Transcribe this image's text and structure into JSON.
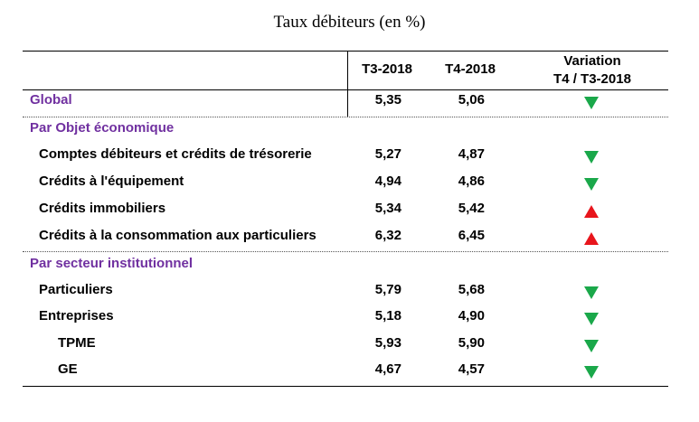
{
  "title": "Taux débiteurs (en %)",
  "columns": {
    "c1": "T3-2018",
    "c2": "T4-2018",
    "c3_line1": "Variation",
    "c3_line2": "T4 / T3-2018"
  },
  "colors": {
    "section": "#7030a0",
    "down": "#1aa84a",
    "up": "#e8151c"
  },
  "sections": {
    "global": "Global",
    "objet": "Par Objet économique",
    "secteur": "Par secteur institutionnel"
  },
  "rows": [
    {
      "label": "Global",
      "t3": "5,35",
      "t4": "5,06",
      "direction": "down"
    },
    {
      "label": "Comptes débiteurs et crédits de trésorerie",
      "t3": "5,27",
      "t4": "4,87",
      "direction": "down"
    },
    {
      "label": "Crédits à l'équipement",
      "t3": "4,94",
      "t4": "4,86",
      "direction": "down"
    },
    {
      "label": "Crédits immobiliers",
      "t3": "5,34",
      "t4": "5,42",
      "direction": "up"
    },
    {
      "label": "Crédits à la consommation aux particuliers",
      "t3": "6,32",
      "t4": "6,45",
      "direction": "up"
    },
    {
      "label": "Particuliers",
      "t3": "5,79",
      "t4": "5,68",
      "direction": "down"
    },
    {
      "label": "Entreprises",
      "t3": "5,18",
      "t4": "4,90",
      "direction": "down"
    },
    {
      "label": "TPME",
      "t3": "5,93",
      "t4": "5,90",
      "direction": "down"
    },
    {
      "label": "GE",
      "t3": "4,67",
      "t4": "4,57",
      "direction": "down"
    }
  ]
}
